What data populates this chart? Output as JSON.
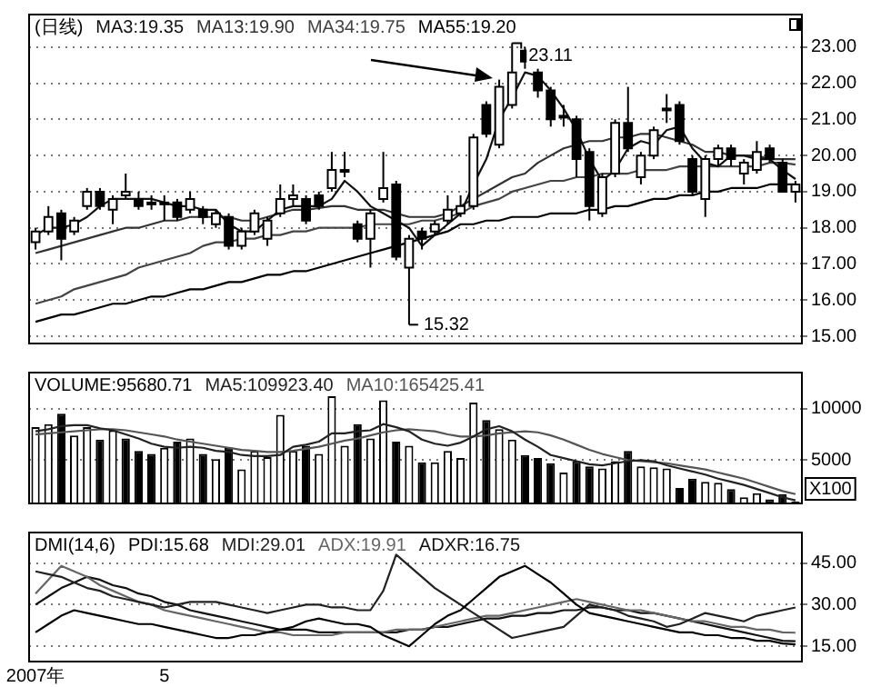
{
  "chart_data": [
    {
      "type": "candlestick",
      "title": "(日线)",
      "legend": "top left",
      "tick_labels": "y",
      "grid": "y",
      "categories": [
        null,
        null,
        null,
        null,
        null,
        null,
        null,
        null,
        null,
        null,
        null,
        null,
        null,
        null,
        null,
        null,
        null,
        null,
        null,
        null,
        null,
        null,
        null,
        null,
        null,
        null,
        null,
        null,
        null,
        null,
        null,
        null,
        null,
        null,
        null,
        null,
        null,
        null,
        null,
        null,
        null,
        null,
        null,
        null,
        null,
        null,
        null,
        null,
        null,
        null,
        null,
        null,
        null,
        null,
        null,
        null,
        null,
        null,
        null,
        null
      ],
      "ylim": [
        14.8,
        23.9
      ],
      "yticks": [
        {
          "value": 15,
          "label": "15.00"
        },
        {
          "value": 16,
          "label": "16.00"
        },
        {
          "value": 17,
          "label": "17.00"
        },
        {
          "value": 18,
          "label": "18.00"
        },
        {
          "value": 19,
          "label": "19.00"
        },
        {
          "value": 20,
          "label": "20.00"
        },
        {
          "value": 21,
          "label": "21.00"
        },
        {
          "value": 22,
          "label": "22.00"
        },
        {
          "value": 23,
          "label": "23.00"
        }
      ],
      "ohlc": [
        [
          17.6,
          18.0,
          17.4,
          17.9
        ],
        [
          17.9,
          18.6,
          17.8,
          18.3
        ],
        [
          18.4,
          18.5,
          17.1,
          17.7
        ],
        [
          17.9,
          18.3,
          17.8,
          18.2
        ],
        [
          18.6,
          19.1,
          18.5,
          19.0
        ],
        [
          19.0,
          19.1,
          18.5,
          18.6
        ],
        [
          18.5,
          18.9,
          18.1,
          18.8
        ],
        [
          18.9,
          19.5,
          18.8,
          19.0
        ],
        [
          18.8,
          19.0,
          18.5,
          18.6
        ],
        [
          18.7,
          18.9,
          18.5,
          18.7
        ],
        [
          18.7,
          18.9,
          18.2,
          18.7
        ],
        [
          18.7,
          18.8,
          18.2,
          18.3
        ],
        [
          18.5,
          19.0,
          18.4,
          18.8
        ],
        [
          18.5,
          18.6,
          18.1,
          18.3
        ],
        [
          18.1,
          18.5,
          18.0,
          18.4
        ],
        [
          18.3,
          18.4,
          17.4,
          17.5
        ],
        [
          17.5,
          18.0,
          17.4,
          17.9
        ],
        [
          17.9,
          18.5,
          17.8,
          18.4
        ],
        [
          17.7,
          18.3,
          17.5,
          18.2
        ],
        [
          18.4,
          19.2,
          18.3,
          18.8
        ],
        [
          18.8,
          19.2,
          18.6,
          18.9
        ],
        [
          18.8,
          18.9,
          18.1,
          18.2
        ],
        [
          18.9,
          19.0,
          18.5,
          18.6
        ],
        [
          19.1,
          20.1,
          19.0,
          19.6
        ],
        [
          19.6,
          20.1,
          19.4,
          19.6
        ],
        [
          18.1,
          18.2,
          17.6,
          17.7
        ],
        [
          17.7,
          18.5,
          16.9,
          18.4
        ],
        [
          18.8,
          20.1,
          18.7,
          19.1
        ],
        [
          19.2,
          19.3,
          17.1,
          17.2
        ],
        [
          16.9,
          17.8,
          15.32,
          17.7
        ],
        [
          17.9,
          18.0,
          17.4,
          17.7
        ],
        [
          17.9,
          18.2,
          17.8,
          18.1
        ],
        [
          18.2,
          18.9,
          18.1,
          18.5
        ],
        [
          18.4,
          18.9,
          18.3,
          18.6
        ],
        [
          18.6,
          20.6,
          18.5,
          20.5
        ],
        [
          21.4,
          21.5,
          20.5,
          20.6
        ],
        [
          20.3,
          22.1,
          20.2,
          21.9
        ],
        [
          21.4,
          23.11,
          21.3,
          22.3
        ],
        [
          22.9,
          23.0,
          22.4,
          22.6
        ],
        [
          22.3,
          22.4,
          21.6,
          21.8
        ],
        [
          21.8,
          21.9,
          20.8,
          21.0
        ],
        [
          21.1,
          21.4,
          20.8,
          21.1
        ],
        [
          21.0,
          21.1,
          19.4,
          19.9
        ],
        [
          20.1,
          20.2,
          18.2,
          18.6
        ],
        [
          18.4,
          19.5,
          18.3,
          19.4
        ],
        [
          19.5,
          21.0,
          19.4,
          20.9
        ],
        [
          20.9,
          21.9,
          20.1,
          20.2
        ],
        [
          19.4,
          20.1,
          19.2,
          20.0
        ],
        [
          20.0,
          20.8,
          19.9,
          20.7
        ],
        [
          21.3,
          21.7,
          20.9,
          21.3
        ],
        [
          21.4,
          21.5,
          20.3,
          20.4
        ],
        [
          19.9,
          20.0,
          18.9,
          19.0
        ],
        [
          18.8,
          20.0,
          18.3,
          19.9
        ],
        [
          19.9,
          20.3,
          19.7,
          20.2
        ],
        [
          20.2,
          20.3,
          19.7,
          19.9
        ],
        [
          19.5,
          19.9,
          19.2,
          19.8
        ],
        [
          19.6,
          20.4,
          19.5,
          20.1
        ],
        [
          20.2,
          20.3,
          19.8,
          19.9
        ],
        [
          19.8,
          19.9,
          19.0,
          19.0
        ],
        [
          19.0,
          19.3,
          18.7,
          19.2
        ]
      ],
      "colors": [
        "#ffffff",
        "#ffffff",
        "#000000",
        "#ffffff",
        "#ffffff",
        "#000000",
        "#ffffff",
        "#ffffff",
        "#000000",
        "#ffffff",
        "#ffffff",
        "#000000",
        "#ffffff",
        "#000000",
        "#ffffff",
        "#000000",
        "#ffffff",
        "#ffffff",
        "#ffffff",
        "#ffffff",
        "#ffffff",
        "#000000",
        "#000000",
        "#ffffff",
        "#ffffff",
        "#000000",
        "#ffffff",
        "#ffffff",
        "#000000",
        "#ffffff",
        "#000000",
        "#ffffff",
        "#ffffff",
        "#ffffff",
        "#ffffff",
        "#000000",
        "#ffffff",
        "#ffffff",
        "#000000",
        "#000000",
        "#000000",
        "#ffffff",
        "#000000",
        "#000000",
        "#ffffff",
        "#ffffff",
        "#000000",
        "#ffffff",
        "#ffffff",
        "#ffffff",
        "#000000",
        "#000000",
        "#ffffff",
        "#ffffff",
        "#000000",
        "#ffffff",
        "#ffffff",
        "#000000",
        "#000000",
        "#ffffff"
      ],
      "series": [
        {
          "type": "line",
          "name": "MA3:19.35",
          "color": "#111111",
          "values": [
            17.8,
            18.0,
            18.0,
            18.1,
            18.3,
            18.6,
            18.8,
            18.8,
            18.8,
            18.8,
            18.7,
            18.6,
            18.6,
            18.5,
            18.5,
            18.1,
            17.9,
            17.9,
            18.2,
            18.5,
            18.6,
            18.6,
            18.6,
            18.8,
            19.3,
            19.0,
            18.6,
            18.4,
            18.2,
            18.0,
            17.5,
            17.8,
            18.1,
            18.4,
            19.2,
            19.9,
            21.0,
            21.6,
            22.3,
            22.2,
            21.8,
            21.3,
            20.7,
            19.9,
            19.3,
            19.6,
            20.2,
            20.4,
            20.3,
            20.7,
            20.8,
            20.2,
            19.8,
            19.7,
            20.0,
            20.0,
            19.9,
            19.9,
            19.6,
            19.35
          ]
        },
        {
          "type": "line",
          "name": "MA13:19.90",
          "color": "#333333",
          "values": [
            17.3,
            17.4,
            17.5,
            17.6,
            17.7,
            17.8,
            17.9,
            18.0,
            18.0,
            18.1,
            18.2,
            18.2,
            18.3,
            18.3,
            18.3,
            18.3,
            18.2,
            18.2,
            18.3,
            18.4,
            18.5,
            18.5,
            18.55,
            18.6,
            18.6,
            18.5,
            18.5,
            18.5,
            18.4,
            18.3,
            18.3,
            18.3,
            18.4,
            18.6,
            18.8,
            19.0,
            19.2,
            19.4,
            19.5,
            19.8,
            20.0,
            20.2,
            20.3,
            20.4,
            20.4,
            20.5,
            20.5,
            20.6,
            20.6,
            20.5,
            20.4,
            20.3,
            20.1,
            20.1,
            20.0,
            20.0,
            20.0,
            19.9,
            19.9,
            19.9
          ]
        },
        {
          "type": "line",
          "name": "MA34:19.75",
          "color": "#444444",
          "values": [
            15.9,
            16.0,
            16.1,
            16.3,
            16.4,
            16.5,
            16.6,
            16.7,
            16.9,
            17.0,
            17.1,
            17.2,
            17.3,
            17.5,
            17.6,
            17.6,
            17.7,
            17.7,
            17.8,
            17.8,
            17.9,
            17.9,
            18.0,
            18.0,
            18.0,
            18.0,
            18.1,
            18.1,
            18.1,
            18.1,
            18.2,
            18.2,
            18.3,
            18.4,
            18.6,
            18.7,
            18.8,
            19.0,
            19.1,
            19.2,
            19.3,
            19.3,
            19.4,
            19.4,
            19.5,
            19.5,
            19.5,
            19.6,
            19.6,
            19.6,
            19.7,
            19.7,
            19.7,
            19.7,
            19.7,
            19.7,
            19.7,
            19.8,
            19.8,
            19.75
          ]
        },
        {
          "type": "line",
          "name": "MA55:19.20",
          "color": "#000000",
          "values": [
            15.4,
            15.5,
            15.6,
            15.6,
            15.7,
            15.8,
            15.9,
            15.9,
            16.0,
            16.1,
            16.1,
            16.2,
            16.3,
            16.3,
            16.4,
            16.5,
            16.5,
            16.6,
            16.7,
            16.7,
            16.8,
            16.8,
            16.9,
            17.0,
            17.1,
            17.2,
            17.3,
            17.4,
            17.5,
            17.6,
            17.7,
            17.8,
            17.9,
            18.1,
            18.1,
            18.2,
            18.2,
            18.3,
            18.3,
            18.3,
            18.4,
            18.4,
            18.4,
            18.5,
            18.5,
            18.6,
            18.6,
            18.7,
            18.8,
            18.8,
            18.9,
            18.9,
            19.0,
            19.0,
            19.1,
            19.1,
            19.1,
            19.2,
            19.2,
            19.2
          ]
        }
      ],
      "annotations": [
        "23.11",
        "15.32"
      ]
    },
    {
      "type": "bar",
      "legend": "top left",
      "tick_labels": "y",
      "grid": "y",
      "categories": [
        null,
        null,
        null,
        null,
        null,
        null,
        null,
        null,
        null,
        null,
        null,
        null,
        null,
        null,
        null,
        null,
        null,
        null,
        null,
        null,
        null,
        null,
        null,
        null,
        null,
        null,
        null,
        null,
        null,
        null,
        null,
        null,
        null,
        null,
        null,
        null,
        null,
        null,
        null,
        null,
        null,
        null,
        null,
        null,
        null,
        null,
        null,
        null,
        null,
        null,
        null,
        null,
        null,
        null,
        null,
        null,
        null,
        null,
        null,
        null
      ],
      "ylim": [
        800,
        13500
      ],
      "yticks": [
        5000,
        10000
      ],
      "series": [
        {
          "type": "bar",
          "name": "VOLUME:95680.71",
          "values": [
            8200,
            8500,
            9500,
            7400,
            8200,
            7000,
            7900,
            7100,
            5900,
            5600,
            6200,
            6800,
            7100,
            5600,
            5100,
            6200,
            4100,
            5900,
            5300,
            9400,
            5900,
            6400,
            5600,
            11200,
            6400,
            8500,
            7100,
            10800,
            6800,
            6400,
            4800,
            4800,
            5900,
            5200,
            10600,
            8900,
            8000,
            7000,
            5500,
            5200,
            4700,
            3800,
            4900,
            4400,
            4200,
            4900,
            5900,
            4400,
            4300,
            4200,
            2300,
            3200,
            2900,
            2800,
            2200,
            1400,
            1800,
            1200,
            1700,
            1000
          ],
          "colors": [
            "#ffffff",
            "#ffffff",
            "#000000",
            "#ffffff",
            "#ffffff",
            "#000000",
            "#ffffff",
            "#000000",
            "#000000",
            "#000000",
            "#ffffff",
            "#000000",
            "#ffffff",
            "#000000",
            "#ffffff",
            "#000000",
            "#ffffff",
            "#ffffff",
            "#ffffff",
            "#ffffff",
            "#ffffff",
            "#000000",
            "#ffffff",
            "#ffffff",
            "#ffffff",
            "#000000",
            "#ffffff",
            "#ffffff",
            "#000000",
            "#ffffff",
            "#000000",
            "#ffffff",
            "#ffffff",
            "#ffffff",
            "#ffffff",
            "#000000",
            "#ffffff",
            "#ffffff",
            "#000000",
            "#000000",
            "#000000",
            "#ffffff",
            "#000000",
            "#000000",
            "#ffffff",
            "#ffffff",
            "#000000",
            "#ffffff",
            "#ffffff",
            "#ffffff",
            "#000000",
            "#000000",
            "#ffffff",
            "#ffffff",
            "#000000",
            "#ffffff",
            "#ffffff",
            "#000000",
            "#000000",
            "#ffffff"
          ]
        },
        {
          "type": "line",
          "name": "MA5:109923.40",
          "color": "#222222",
          "values": [
            7800,
            8000,
            8300,
            8400,
            8400,
            8100,
            7900,
            7500,
            7100,
            6600,
            6300,
            6200,
            6300,
            6200,
            5900,
            5800,
            5500,
            5400,
            5400,
            5500,
            6300,
            6500,
            6800,
            7600,
            7600,
            7800,
            7900,
            8500,
            8200,
            7800,
            7000,
            6600,
            6400,
            6700,
            7300,
            8000,
            8300,
            7800,
            7000,
            6300,
            5500,
            5200,
            4900,
            4600,
            4500,
            4700,
            4900,
            5000,
            4900,
            4500,
            4200,
            3900,
            3600,
            3200,
            2900,
            2600,
            2200,
            1800,
            1400,
            1100
          ]
        },
        {
          "type": "line",
          "name": "MA10:165425.41",
          "color": "#555555",
          "values": [
            7500,
            7600,
            7700,
            7800,
            7900,
            8000,
            8000,
            7900,
            7700,
            7500,
            7300,
            7000,
            6800,
            6600,
            6400,
            6200,
            6000,
            5900,
            5800,
            5800,
            5900,
            6100,
            6300,
            6600,
            6900,
            7100,
            7400,
            7700,
            7900,
            8000,
            7900,
            7800,
            7500,
            7300,
            7300,
            7400,
            7600,
            7700,
            7800,
            7700,
            7400,
            7000,
            6500,
            6000,
            5600,
            5300,
            5000,
            4900,
            4800,
            4700,
            4500,
            4300,
            4100,
            3800,
            3500,
            3200,
            2800,
            2400,
            2000,
            1700
          ]
        }
      ],
      "annotations": [
        "X100"
      ]
    },
    {
      "type": "line",
      "title": "DMI(14,6)",
      "legend": "top left",
      "grid": "y",
      "categories": [
        "2007年",
        null,
        null,
        null,
        null,
        null,
        null,
        null,
        null,
        null,
        "5",
        null,
        null,
        null,
        null,
        null,
        null,
        null,
        null,
        null,
        null,
        null,
        null,
        null,
        null,
        null,
        null,
        null,
        null,
        null,
        null,
        null,
        null,
        null,
        null,
        null,
        null,
        null,
        null,
        null,
        null,
        null,
        null,
        null,
        null,
        null,
        null,
        null,
        null,
        null,
        null,
        null,
        null,
        null,
        null,
        null,
        null,
        null,
        null,
        null
      ],
      "ylim": [
        9.5,
        56
      ],
      "yticks": [
        {
          "value": 15,
          "label": "15.00"
        },
        {
          "value": 30,
          "label": "30.00"
        },
        {
          "value": 45,
          "label": "45.00"
        }
      ],
      "series": [
        {
          "name": "PDI:15.68",
          "color": "#000000",
          "values": [
            20,
            23,
            26,
            28,
            27,
            26,
            25,
            24,
            23,
            23,
            22,
            21,
            20,
            19,
            18,
            18,
            19,
            19,
            20,
            21,
            22,
            24,
            25,
            24,
            23,
            23,
            22,
            19,
            17,
            15,
            19,
            23,
            26,
            28,
            32,
            36,
            40,
            42,
            44,
            41,
            38,
            34,
            30,
            27,
            26,
            25,
            24,
            23,
            22,
            21,
            20,
            20,
            19,
            19,
            18,
            18,
            17,
            17,
            16,
            15.7
          ]
        },
        {
          "name": "MDI:29.01",
          "color": "#222222",
          "values": [
            42,
            41,
            40,
            38,
            36,
            35,
            33,
            32,
            31,
            30,
            29,
            30,
            31,
            31,
            31,
            30,
            29,
            28,
            27,
            28,
            29,
            30,
            30,
            29,
            29,
            28,
            28,
            35,
            48,
            44,
            40,
            36,
            33,
            30,
            27,
            24,
            21,
            18,
            19,
            20,
            21,
            22,
            26,
            30,
            29,
            28,
            26,
            25,
            24,
            22,
            23,
            25,
            27,
            26,
            25,
            24,
            26,
            27,
            28,
            29
          ]
        },
        {
          "name": "ADX:19.91",
          "color": "#666666",
          "values": [
            34,
            39,
            44,
            42,
            40,
            37,
            35,
            33,
            31,
            30,
            28,
            27,
            26,
            25,
            24,
            23,
            22,
            21,
            20,
            20,
            19,
            19,
            19,
            19,
            20,
            20,
            20,
            20,
            21,
            21,
            21,
            22,
            23,
            24,
            25,
            26,
            26,
            27,
            28,
            29,
            30,
            31,
            32,
            31,
            30,
            29,
            28,
            28,
            27,
            26,
            25,
            24,
            24,
            23,
            22,
            22,
            21,
            21,
            20,
            19.9
          ]
        },
        {
          "name": "ADXR:16.75",
          "color": "#111111",
          "values": [
            30,
            33,
            36,
            38,
            40,
            39,
            37,
            36,
            34,
            33,
            31,
            30,
            28,
            27,
            26,
            25,
            24,
            23,
            22,
            21,
            21,
            21,
            20,
            20,
            20,
            20,
            20,
            20,
            20,
            21,
            21,
            22,
            22,
            23,
            24,
            25,
            25,
            26,
            26,
            27,
            27,
            28,
            28,
            29,
            29,
            28,
            28,
            27,
            27,
            26,
            25,
            24,
            23,
            22,
            21,
            20,
            19,
            18,
            17,
            16.8
          ]
        }
      ]
    }
  ]
}
